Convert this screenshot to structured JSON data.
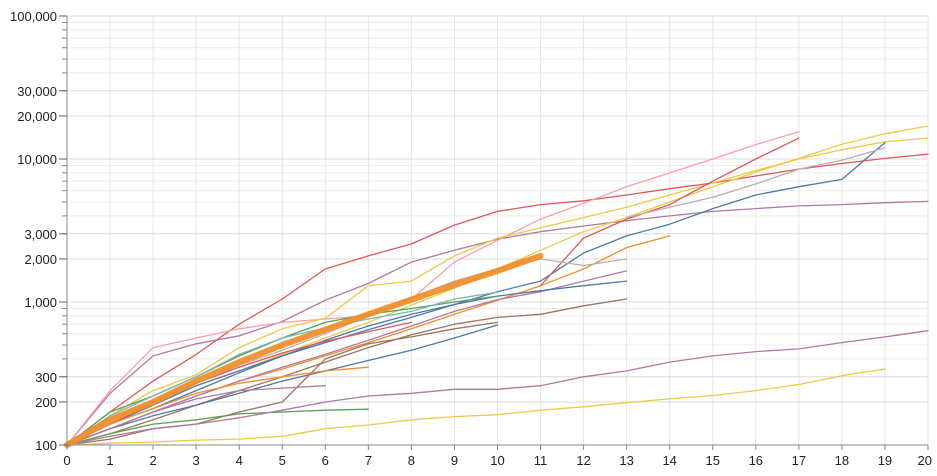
{
  "chart_data": {
    "type": "line",
    "title": "",
    "xlabel": "",
    "ylabel": "",
    "y_scale": "log",
    "grid": true,
    "xlim": [
      0,
      20
    ],
    "ylim": [
      100,
      100000
    ],
    "x_ticks": [
      0,
      1,
      2,
      3,
      4,
      5,
      6,
      7,
      8,
      9,
      10,
      11,
      12,
      13,
      14,
      15,
      16,
      17,
      18,
      19,
      20
    ],
    "x_tick_labels": [
      "0",
      "1",
      "2",
      "3",
      "4",
      "5",
      "6",
      "7",
      "8",
      "9",
      "10",
      "11",
      "12",
      "13",
      "14",
      "15",
      "16",
      "17",
      "18",
      "19",
      "20"
    ],
    "y_ticks": [
      100,
      200,
      300,
      1000,
      2000,
      3000,
      10000,
      20000,
      30000,
      100000
    ],
    "y_tick_labels": [
      "100",
      "200",
      "300",
      "1,000",
      "2,000",
      "3,000",
      "10,000",
      "20,000",
      "30,000",
      "100,000"
    ],
    "series": [
      {
        "color": "#f28e2b",
        "width": 6,
        "x": [
          0,
          1,
          2,
          3,
          4,
          5,
          6,
          7,
          8,
          9,
          10,
          11
        ],
        "values": [
          100,
          150,
          200,
          280,
          380,
          500,
          640,
          820,
          1040,
          1320,
          1650,
          2100
        ]
      },
      {
        "color": "#e15759",
        "width": 1.3,
        "x": [
          0,
          1,
          2,
          3,
          4,
          5,
          6,
          7,
          8,
          9,
          10,
          11,
          12,
          13,
          14,
          15,
          16,
          17,
          18,
          19,
          20
        ],
        "values": [
          100,
          170,
          280,
          430,
          700,
          1050,
          1700,
          2100,
          2550,
          3450,
          4300,
          4800,
          5100,
          5600,
          6200,
          6800,
          7600,
          8500,
          9300,
          10100,
          10800
        ]
      },
      {
        "color": "#b07aa1",
        "width": 1.3,
        "x": [
          0,
          1,
          2,
          3,
          4,
          5,
          6,
          7,
          8,
          9,
          10,
          11,
          12,
          13,
          14,
          15,
          16,
          17,
          18,
          19,
          20
        ],
        "values": [
          100,
          230,
          420,
          510,
          580,
          730,
          1030,
          1350,
          1900,
          2300,
          2750,
          3100,
          3400,
          3700,
          4000,
          4300,
          4500,
          4700,
          4800,
          4950,
          5050
        ]
      },
      {
        "color": "#ff9da7",
        "width": 1.3,
        "x": [
          0,
          1,
          2,
          3,
          4,
          5,
          6,
          7,
          8,
          9,
          10,
          11,
          12,
          13,
          14,
          15,
          16,
          17
        ],
        "values": [
          100,
          240,
          480,
          560,
          650,
          720,
          760,
          800,
          1050,
          1900,
          2700,
          3800,
          4900,
          6400,
          8000,
          10000,
          12600,
          15500
        ]
      },
      {
        "color": "#edc948",
        "width": 1.3,
        "x": [
          0,
          1,
          2,
          3,
          4,
          5,
          6,
          7,
          8,
          9,
          10,
          11,
          12,
          13,
          14,
          15,
          16,
          17,
          18,
          19,
          20
        ],
        "values": [
          100,
          160,
          240,
          310,
          480,
          650,
          770,
          1300,
          1400,
          2100,
          2800,
          3300,
          3900,
          4600,
          5600,
          6800,
          8300,
          10000,
          11600,
          13200,
          14000
        ]
      },
      {
        "color": "#edc948",
        "width": 1.3,
        "x": [
          0,
          1,
          2,
          3,
          4,
          5,
          6,
          7,
          8,
          9,
          10,
          11,
          12,
          13,
          14,
          15,
          16,
          17,
          18,
          19,
          20
        ],
        "values": [
          100,
          150,
          200,
          260,
          330,
          430,
          560,
          720,
          950,
          1250,
          1700,
          2300,
          3100,
          3900,
          5000,
          6400,
          8100,
          10100,
          12700,
          15000,
          17000
        ]
      },
      {
        "color": "#4e79a7",
        "width": 1.3,
        "x": [
          0,
          1,
          2,
          3,
          4,
          5,
          6,
          7,
          8,
          9,
          10,
          11,
          12,
          13,
          14,
          15,
          16,
          17,
          18,
          19
        ],
        "values": [
          100,
          140,
          190,
          260,
          330,
          420,
          520,
          640,
          780,
          960,
          1180,
          1400,
          2200,
          2900,
          3500,
          4500,
          5600,
          6400,
          7200,
          13000
        ]
      },
      {
        "color": "#e15759",
        "width": 1.3,
        "x": [
          11,
          12,
          13,
          14,
          15,
          16,
          17
        ],
        "values": [
          1300,
          2800,
          3800,
          4800,
          7000,
          10000,
          14000
        ]
      },
      {
        "color": "#bab0ac",
        "width": 1.3,
        "x": [
          13,
          14,
          15,
          16,
          17,
          18,
          19
        ],
        "values": [
          3900,
          4600,
          5400,
          6700,
          8500,
          9800,
          12000
        ]
      },
      {
        "color": "#f28e2b",
        "width": 1.3,
        "x": [
          0,
          1,
          2,
          3,
          4,
          5,
          6,
          7,
          8,
          9,
          10,
          11,
          12,
          13,
          14
        ],
        "values": [
          100,
          130,
          170,
          220,
          280,
          340,
          420,
          520,
          650,
          820,
          1030,
          1300,
          1700,
          2400,
          2900
        ]
      },
      {
        "color": "#bab0ac",
        "width": 1.3,
        "x": [
          0,
          1,
          2,
          3,
          4,
          5,
          6,
          7,
          8,
          9,
          10,
          11,
          12,
          13
        ],
        "values": [
          100,
          150,
          200,
          270,
          360,
          460,
          600,
          800,
          1070,
          1400,
          1700,
          2000,
          1800,
          2000
        ]
      },
      {
        "color": "#b07aa1",
        "width": 1.3,
        "x": [
          0,
          1,
          2,
          3,
          4,
          5,
          6,
          7,
          8,
          9,
          10,
          11,
          12,
          13
        ],
        "values": [
          100,
          130,
          170,
          220,
          280,
          350,
          430,
          540,
          680,
          860,
          1040,
          1180,
          1400,
          1650
        ]
      },
      {
        "color": "#4e79a7",
        "width": 1.3,
        "x": [
          0,
          1,
          2,
          3,
          4,
          5,
          6,
          7,
          8,
          9,
          10,
          11,
          12,
          13
        ],
        "values": [
          100,
          140,
          180,
          240,
          320,
          420,
          540,
          680,
          820,
          960,
          1100,
          1200,
          1300,
          1400
        ]
      },
      {
        "color": "#9c755f",
        "width": 1.3,
        "x": [
          0,
          1,
          2,
          3,
          4,
          5,
          6,
          7,
          8,
          9,
          10,
          11,
          12,
          13
        ],
        "values": [
          100,
          120,
          150,
          190,
          240,
          300,
          380,
          480,
          590,
          700,
          780,
          820,
          940,
          1050
        ]
      },
      {
        "color": "#59a14f",
        "width": 1.3,
        "x": [
          0,
          1,
          2,
          3,
          4,
          5,
          6,
          7,
          8,
          9,
          10
        ],
        "values": [
          100,
          170,
          220,
          300,
          420,
          560,
          720,
          820,
          900,
          1000,
          1100
        ]
      },
      {
        "color": "#76b7b2",
        "width": 1.3,
        "x": [
          0,
          1,
          2,
          3,
          4,
          5,
          6,
          7,
          8,
          9,
          10
        ],
        "values": [
          100,
          160,
          220,
          300,
          430,
          560,
          660,
          760,
          860,
          1050,
          1170
        ]
      },
      {
        "color": "#4e79a7",
        "width": 1.3,
        "x": [
          0,
          1,
          2,
          3,
          4,
          5,
          6,
          7,
          8,
          9,
          10
        ],
        "values": [
          100,
          130,
          160,
          190,
          230,
          280,
          330,
          390,
          460,
          560,
          690
        ]
      },
      {
        "color": "#9c755f",
        "width": 1.3,
        "x": [
          0,
          1,
          2,
          3,
          4,
          5,
          6,
          7,
          8,
          9,
          10
        ],
        "values": [
          100,
          110,
          130,
          140,
          170,
          200,
          400,
          510,
          570,
          650,
          720
        ]
      },
      {
        "color": "#e15759",
        "width": 1.3,
        "x": [
          0,
          1,
          2,
          3,
          4,
          5,
          6,
          7,
          8
        ],
        "values": [
          100,
          140,
          200,
          270,
          350,
          440,
          530,
          620,
          720
        ]
      },
      {
        "color": "#f28e2b",
        "width": 1.3,
        "x": [
          0,
          1,
          2,
          3,
          4,
          5,
          6,
          7
        ],
        "values": [
          100,
          140,
          180,
          230,
          270,
          300,
          330,
          350
        ]
      },
      {
        "color": "#59a14f",
        "width": 1.3,
        "x": [
          0,
          1,
          2,
          3,
          4,
          5,
          6,
          7
        ],
        "values": [
          100,
          120,
          140,
          150,
          165,
          170,
          175,
          178
        ]
      },
      {
        "color": "#b07aa1",
        "width": 1.3,
        "x": [
          0,
          1,
          2,
          3,
          4,
          5,
          6
        ],
        "values": [
          100,
          130,
          170,
          210,
          240,
          250,
          260
        ]
      },
      {
        "color": "#b07aa1",
        "width": 1.3,
        "x": [
          0,
          1,
          2,
          3,
          4,
          5,
          6,
          7,
          8,
          9,
          10,
          11,
          12,
          13,
          14,
          15,
          16,
          17,
          18,
          19,
          20
        ],
        "values": [
          100,
          115,
          130,
          140,
          155,
          175,
          200,
          220,
          230,
          245,
          245,
          260,
          300,
          330,
          380,
          420,
          450,
          470,
          520,
          570,
          630
        ]
      },
      {
        "color": "#edc948",
        "width": 1.3,
        "x": [
          0,
          1,
          2,
          3,
          4,
          5,
          6,
          7,
          8,
          9,
          10,
          11,
          12,
          13,
          14,
          15,
          16,
          17,
          18,
          19
        ],
        "values": [
          100,
          103,
          105,
          108,
          110,
          115,
          130,
          138,
          150,
          158,
          163,
          175,
          185,
          198,
          210,
          222,
          240,
          265,
          305,
          340
        ]
      }
    ]
  }
}
